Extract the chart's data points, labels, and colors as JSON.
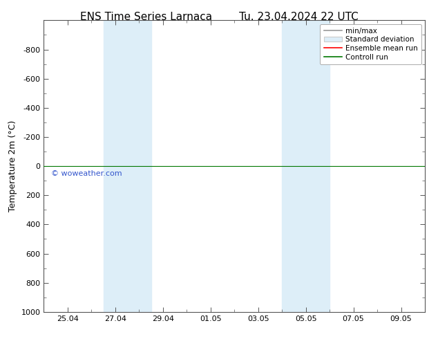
{
  "title_left": "ENS Time Series Larnaca",
  "title_right": "Tu. 23.04.2024 22 UTC",
  "ylabel": "Temperature 2m (°C)",
  "ylim_bottom": 1000,
  "ylim_top": -1000,
  "yticks": [
    -800,
    -600,
    -400,
    -200,
    0,
    200,
    400,
    600,
    800,
    1000
  ],
  "x_tick_labels": [
    "25.04",
    "27.04",
    "29.04",
    "01.05",
    "03.05",
    "05.05",
    "07.05",
    "09.05"
  ],
  "x_tick_positions": [
    1.0,
    3.0,
    5.0,
    7.0,
    9.0,
    11.0,
    13.0,
    15.0
  ],
  "x_min": 0.0,
  "x_max": 16.0,
  "shaded_bands": [
    [
      2.5,
      3.5
    ],
    [
      3.5,
      4.5
    ],
    [
      10.0,
      11.0
    ],
    [
      11.0,
      12.0
    ]
  ],
  "shade_color": "#ddeef8",
  "control_run_y": 0,
  "legend_labels": [
    "min/max",
    "Standard deviation",
    "Ensemble mean run",
    "Controll run"
  ],
  "legend_line_color": "#999999",
  "legend_box_color": "#cccccc",
  "ensemble_mean_color": "#ff0000",
  "control_run_color": "#007700",
  "watermark": "© woweather.com",
  "watermark_color": "#3355cc",
  "background_color": "#ffffff",
  "title_fontsize": 11,
  "axis_fontsize": 9,
  "tick_fontsize": 8,
  "spine_color": "#555555"
}
